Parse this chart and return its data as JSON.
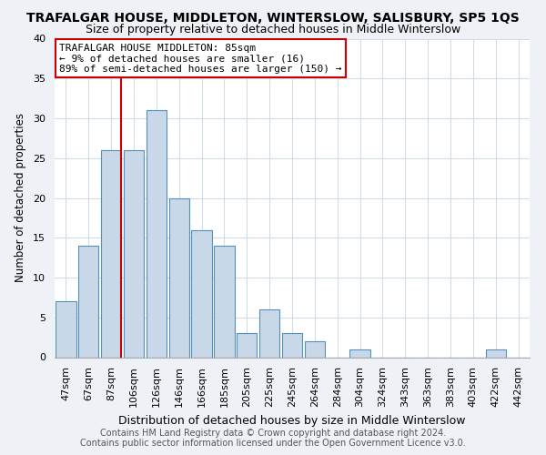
{
  "title": "TRAFALGAR HOUSE, MIDDLETON, WINTERSLOW, SALISBURY, SP5 1QS",
  "subtitle": "Size of property relative to detached houses in Middle Winterslow",
  "xlabel": "Distribution of detached houses by size in Middle Winterslow",
  "ylabel": "Number of detached properties",
  "bin_labels": [
    "47sqm",
    "67sqm",
    "87sqm",
    "106sqm",
    "126sqm",
    "146sqm",
    "166sqm",
    "185sqm",
    "205sqm",
    "225sqm",
    "245sqm",
    "264sqm",
    "284sqm",
    "304sqm",
    "324sqm",
    "343sqm",
    "363sqm",
    "383sqm",
    "403sqm",
    "422sqm",
    "442sqm"
  ],
  "bar_heights": [
    7,
    14,
    26,
    26,
    31,
    20,
    16,
    14,
    3,
    6,
    3,
    2,
    0,
    1,
    0,
    0,
    0,
    0,
    0,
    1,
    0
  ],
  "bar_color": "#c8d8e8",
  "bar_edge_color": "#5590b8",
  "vline_x_index": 2,
  "vline_color": "#cc0000",
  "ylim": [
    0,
    40
  ],
  "annotation_title": "TRAFALGAR HOUSE MIDDLETON: 85sqm",
  "annotation_line1": "← 9% of detached houses are smaller (16)",
  "annotation_line2": "89% of semi-detached houses are larger (150) →",
  "annotation_box_color": "#ffffff",
  "annotation_box_edge_color": "#cc0000",
  "footer1": "Contains HM Land Registry data © Crown copyright and database right 2024.",
  "footer2": "Contains public sector information licensed under the Open Government Licence v3.0.",
  "background_color": "#eef2f7",
  "plot_background_color": "#ffffff",
  "title_fontsize": 10,
  "subtitle_fontsize": 9,
  "xlabel_fontsize": 9,
  "ylabel_fontsize": 8.5,
  "tick_fontsize": 8,
  "annotation_fontsize": 8,
  "footer_fontsize": 7
}
